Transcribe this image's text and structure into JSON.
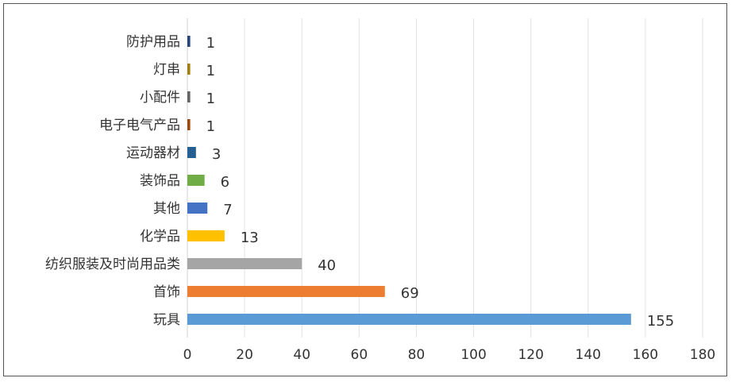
{
  "chart_data": {
    "type": "bar",
    "orientation": "horizontal",
    "title": "",
    "xlabel": "",
    "ylabel": "",
    "xlim": [
      0,
      180
    ],
    "x_ticks": [
      0,
      20,
      40,
      60,
      80,
      100,
      120,
      140,
      160,
      180
    ],
    "grid": true,
    "legend": "none",
    "data_labels": true,
    "categories": [
      "防护用品",
      "灯串",
      "小配件",
      "电子电气产品",
      "运动器材",
      "装饰品",
      "其他",
      "化学品",
      "纺织服装及时尚用品类",
      "首饰",
      "玩具"
    ],
    "values": [
      1,
      1,
      1,
      1,
      3,
      6,
      7,
      13,
      40,
      69,
      155
    ],
    "colors": [
      "#264478",
      "#9e7f10",
      "#636363",
      "#9e480e",
      "#255e91",
      "#70ad47",
      "#4472c4",
      "#ffc000",
      "#a5a5a5",
      "#ed7d31",
      "#5b9bd5"
    ]
  }
}
